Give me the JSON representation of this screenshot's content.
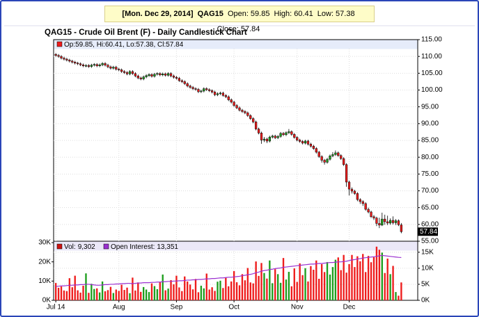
{
  "banner": {
    "date": "[Mon. Dec 29, 2014]",
    "symbol": "QAG15",
    "labels": [
      "Open:",
      "High:",
      "Low:",
      "Close:"
    ]
  },
  "chart_data": [
    {
      "type": "candlestick",
      "title": "QAG15 - Crude Oil Brent (F) - Daily Candlestick Chart",
      "legend_labels": [
        "Op:",
        ", Hi:",
        ", Lo:",
        ", Cl:"
      ],
      "up_color": "#1e9e1e",
      "down_color": "#ee1c1c",
      "grid": true,
      "xlim": [
        -0.8,
        132
      ],
      "xticks": [
        {
          "value": 0,
          "label": "Jul 14"
        },
        {
          "value": 23,
          "label": "Aug"
        },
        {
          "value": 44,
          "label": "Sep"
        },
        {
          "value": 65,
          "label": "Oct"
        },
        {
          "value": 88,
          "label": "Nov"
        },
        {
          "value": 107,
          "label": "Dec"
        }
      ],
      "ylim": [
        55,
        115
      ],
      "yticks": [
        {
          "value": 115,
          "label": "115.00"
        },
        {
          "value": 110,
          "label": "110.00"
        },
        {
          "value": 105,
          "label": "105.00"
        },
        {
          "value": 100,
          "label": "100.00"
        },
        {
          "value": 95,
          "label": "95.00"
        },
        {
          "value": 90,
          "label": "90.00"
        },
        {
          "value": 85,
          "label": "85.00"
        },
        {
          "value": 80,
          "label": "80.00"
        },
        {
          "value": 75,
          "label": "75.00"
        },
        {
          "value": 70,
          "label": "70.00"
        },
        {
          "value": 65,
          "label": "65.00"
        },
        {
          "value": 60,
          "label": "60.00"
        },
        {
          "value": 55,
          "label": "55.00"
        }
      ],
      "open": [
        110.6,
        110.3,
        110.0,
        109.5,
        109.2,
        108.9,
        108.6,
        108.3,
        108.0,
        107.8,
        107.5,
        107.2,
        107.3,
        107.0,
        107.4,
        107.6,
        107.2,
        107.5,
        107.9,
        107.4,
        106.9,
        106.5,
        106.8,
        106.2,
        106.0,
        105.5,
        105.2,
        104.8,
        105.5,
        104.9,
        104.2,
        103.6,
        103.3,
        103.9,
        104.3,
        104.6,
        104.1,
        104.7,
        104.9,
        104.5,
        104.8,
        104.4,
        104.9,
        104.2,
        103.8,
        103.5,
        102.8,
        102.5,
        101.9,
        101.2,
        100.8,
        100.4,
        100.2,
        99.5,
        99.7,
        100.4,
        100.1,
        99.8,
        99.4,
        98.6,
        98.9,
        99.1,
        98.4,
        98.0,
        97.1,
        96.4,
        95.4,
        94.7,
        94.0,
        93.6,
        93.2,
        92.4,
        91.5,
        90.5,
        88.4,
        87.2,
        85.1,
        85.4,
        84.8,
        86.0,
        86.3,
        85.8,
        86.2,
        87.1,
        86.7,
        87.3,
        87.6,
        86.8,
        85.9,
        85.1,
        84.7,
        84.2,
        84.8,
        83.9,
        83.3,
        82.6,
        81.5,
        80.2,
        79.1,
        78.5,
        79.4,
        80.4,
        80.8,
        81.3,
        80.5,
        79.6,
        77.8,
        72.6,
        70.5,
        69.9,
        69.2,
        67.4,
        66.8,
        66.2,
        64.5,
        63.7,
        62.3,
        61.9,
        60.3,
        59.8,
        61.6,
        60.8,
        60.4,
        61.2,
        60.5,
        61.1,
        59.85
      ],
      "high": [
        111.0,
        110.7,
        110.4,
        109.9,
        109.6,
        109.3,
        109.0,
        108.7,
        108.4,
        108.2,
        107.9,
        107.7,
        107.7,
        107.8,
        108.0,
        108.0,
        107.9,
        108.3,
        108.3,
        107.8,
        107.3,
        107.2,
        107.2,
        106.6,
        106.4,
        105.9,
        105.6,
        105.9,
        105.9,
        105.3,
        104.6,
        104.0,
        104.3,
        104.7,
        105.0,
        105.0,
        105.1,
        105.3,
        105.3,
        105.2,
        105.2,
        105.3,
        105.3,
        104.6,
        104.2,
        103.9,
        103.2,
        102.9,
        102.3,
        101.6,
        101.2,
        100.8,
        100.6,
        100.1,
        100.8,
        100.8,
        100.5,
        100.2,
        99.8,
        99.3,
        99.5,
        99.5,
        98.8,
        98.4,
        97.5,
        96.8,
        95.8,
        95.1,
        94.4,
        94.0,
        93.6,
        92.8,
        91.9,
        90.9,
        88.8,
        87.6,
        86.0,
        85.8,
        86.4,
        86.7,
        86.7,
        86.6,
        87.5,
        87.5,
        87.7,
        88.4,
        88.0,
        87.2,
        86.3,
        85.5,
        85.1,
        85.2,
        85.2,
        84.3,
        83.7,
        83.0,
        81.9,
        80.6,
        79.5,
        79.8,
        80.8,
        81.5,
        82.0,
        81.7,
        80.9,
        80.0,
        78.2,
        73.0,
        71.0,
        70.3,
        69.6,
        67.8,
        67.2,
        66.6,
        65.0,
        64.1,
        62.8,
        62.3,
        62.0,
        63.5,
        62.9,
        62.6,
        61.8,
        62.4,
        61.6,
        61.5,
        60.41
      ],
      "low": [
        109.9,
        109.6,
        109.1,
        108.8,
        108.5,
        108.2,
        107.9,
        107.6,
        107.4,
        107.1,
        106.8,
        106.8,
        106.6,
        106.6,
        107.0,
        106.8,
        106.8,
        107.1,
        107.0,
        106.5,
        106.1,
        106.1,
        105.8,
        105.6,
        105.1,
        104.8,
        104.4,
        104.4,
        104.5,
        103.8,
        103.2,
        102.9,
        102.9,
        103.5,
        103.9,
        103.7,
        103.7,
        104.3,
        104.1,
        104.1,
        104.0,
        104.0,
        103.8,
        103.4,
        103.1,
        102.4,
        102.1,
        101.5,
        100.8,
        100.4,
        100.0,
        99.8,
        99.1,
        99.1,
        99.3,
        99.7,
        99.4,
        99.0,
        98.2,
        98.2,
        98.5,
        98.0,
        97.6,
        96.7,
        96.0,
        95.0,
        94.3,
        93.6,
        93.2,
        92.8,
        92.0,
        91.1,
        90.1,
        88.0,
        86.8,
        84.0,
        84.5,
        84.2,
        84.4,
        85.6,
        85.4,
        85.4,
        85.8,
        86.3,
        86.3,
        86.9,
        86.4,
        85.5,
        84.7,
        84.3,
        83.8,
        83.8,
        83.5,
        82.9,
        82.2,
        81.1,
        79.8,
        78.4,
        77.8,
        78.1,
        79.0,
        80.0,
        80.4,
        80.1,
        79.2,
        77.4,
        71.2,
        68.6,
        69.2,
        68.8,
        66.9,
        66.1,
        65.5,
        64.1,
        63.3,
        61.9,
        61.3,
        59.5,
        58.9,
        59.5,
        59.9,
        59.8,
        59.9,
        60.0,
        59.8,
        59.5,
        57.38
      ],
      "close": [
        110.3,
        110.0,
        109.5,
        109.2,
        108.9,
        108.6,
        108.3,
        108.0,
        107.8,
        107.5,
        107.2,
        107.3,
        107.0,
        107.4,
        107.6,
        107.2,
        107.5,
        107.9,
        107.4,
        106.9,
        106.5,
        106.8,
        106.2,
        106.0,
        105.5,
        105.2,
        104.8,
        105.5,
        104.9,
        104.2,
        103.6,
        103.3,
        103.9,
        104.3,
        104.6,
        104.1,
        104.7,
        104.9,
        104.5,
        104.8,
        104.4,
        104.9,
        104.2,
        103.8,
        103.5,
        102.8,
        102.5,
        101.9,
        101.2,
        100.8,
        100.4,
        100.2,
        99.5,
        99.7,
        100.4,
        100.1,
        99.8,
        99.4,
        98.6,
        98.9,
        99.1,
        98.4,
        98.0,
        97.1,
        96.4,
        95.4,
        94.7,
        94.0,
        93.6,
        93.2,
        92.4,
        91.5,
        90.5,
        88.4,
        87.2,
        85.1,
        85.4,
        84.8,
        86.0,
        86.3,
        85.8,
        86.2,
        87.1,
        86.7,
        87.3,
        87.6,
        86.8,
        85.9,
        85.1,
        84.7,
        84.2,
        84.8,
        83.9,
        83.3,
        82.6,
        81.5,
        80.2,
        79.1,
        78.5,
        79.4,
        80.4,
        80.8,
        81.3,
        80.5,
        79.6,
        77.8,
        72.6,
        70.5,
        69.9,
        69.2,
        67.4,
        66.8,
        66.2,
        64.5,
        63.7,
        62.3,
        61.9,
        60.3,
        59.8,
        61.6,
        60.8,
        60.4,
        61.2,
        60.5,
        61.1,
        59.9,
        57.84
      ]
    },
    {
      "type": "volume",
      "ylim": [
        0,
        30000
      ],
      "yticks": [
        {
          "value": 0,
          "label": "0K"
        },
        {
          "value": 10000,
          "label": "10K"
        },
        {
          "value": 20000,
          "label": "20K"
        },
        {
          "value": 30000,
          "label": "30K"
        }
      ],
      "y2lim": [
        0,
        18000
      ],
      "y2ticks": [
        {
          "value": 0,
          "label": "0K"
        },
        {
          "value": 5000,
          "label": "5K"
        },
        {
          "value": 10000,
          "label": "10K"
        },
        {
          "value": 15000,
          "label": "15K"
        }
      ],
      "series": [
        {
          "name": "Vol:",
          "value_label": "9,302",
          "color": "#cc1111",
          "values": [
            9000,
            6500,
            7200,
            5100,
            4800,
            11500,
            6800,
            12800,
            5200,
            4000,
            7600,
            14000,
            3900,
            8600,
            5900,
            6200,
            4100,
            9800,
            4700,
            5300,
            7000,
            3800,
            5600,
            4900,
            8100,
            5400,
            6600,
            3700,
            11800,
            5100,
            9300,
            4400,
            6900,
            5600,
            4300,
            8800,
            7400,
            5800,
            9600,
            13400,
            5200,
            6100,
            10500,
            8300,
            12800,
            6700,
            4800,
            12400,
            9800,
            8200,
            5700,
            11100,
            4200,
            7600,
            6200,
            13900,
            5600,
            6800,
            4900,
            9700,
            10200,
            6400,
            11700,
            7300,
            9800,
            15200,
            9400,
            7800,
            13600,
            10400,
            16800,
            9300,
            8800,
            20200,
            12700,
            19400,
            14200,
            11300,
            20700,
            8900,
            16200,
            13600,
            9100,
            22000,
            10800,
            14800,
            7300,
            16600,
            9600,
            19200,
            13100,
            16700,
            9800,
            17800,
            15900,
            20700,
            11200,
            18800,
            14700,
            19900,
            13400,
            17300,
            21100,
            22300,
            15700,
            23600,
            14400,
            18800,
            23600,
            17300,
            22900,
            20300,
            24100,
            14700,
            23100,
            19800,
            22400,
            27900,
            26300,
            24800,
            14200,
            21700,
            13600,
            17900,
            4300,
            2400,
            9302
          ]
        },
        {
          "name": "Open Interest:",
          "value_label": "13,351",
          "color": "#9b30d0",
          "axis": "y2",
          "values": [
            4300,
            4400,
            4500,
            4500,
            4600,
            4700,
            4700,
            4800,
            4800,
            4900,
            4900,
            5000,
            5000,
            4900,
            4800,
            4700,
            4700,
            4800,
            4900,
            4900,
            5000,
            5000,
            5100,
            5100,
            5200,
            5200,
            5300,
            5300,
            5200,
            5300,
            5400,
            5400,
            5500,
            5500,
            5500,
            5600,
            5600,
            5700,
            5700,
            5800,
            5800,
            5900,
            5900,
            6000,
            6000,
            6100,
            6100,
            6200,
            6300,
            6300,
            6400,
            6400,
            6500,
            6500,
            6600,
            6700,
            6700,
            6800,
            6800,
            6900,
            7000,
            7000,
            7100,
            7200,
            7200,
            7300,
            7400,
            7500,
            7700,
            7800,
            8000,
            8100,
            8300,
            8600,
            8800,
            9100,
            9300,
            9400,
            9600,
            9700,
            9900,
            10000,
            10100,
            10300,
            10400,
            10500,
            10600,
            10700,
            10800,
            10900,
            11000,
            11100,
            11200,
            11300,
            11300,
            11400,
            11500,
            11500,
            11600,
            11700,
            11800,
            11800,
            11900,
            12000,
            12000,
            12100,
            12200,
            12400,
            12600,
            12700,
            12900,
            13000,
            13200,
            13300,
            13400,
            13500,
            13600,
            13700,
            13900,
            14000,
            13900,
            13800,
            13700,
            13600,
            13500,
            13400,
            13351
          ]
        }
      ]
    }
  ]
}
